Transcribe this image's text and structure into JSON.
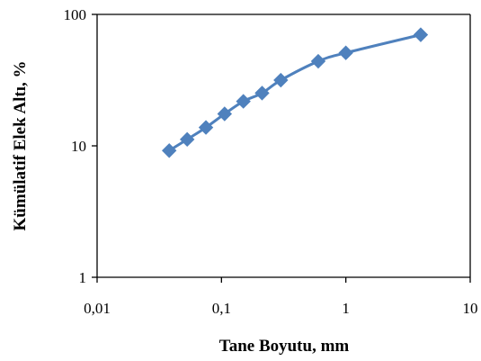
{
  "chart_data": {
    "type": "line",
    "xlabel": "Tane Boyutu, mm",
    "ylabel": "Kümülatif Elek Altı, %",
    "x_scale": "log",
    "y_scale": "log",
    "xlim": [
      0.01,
      10
    ],
    "ylim": [
      1,
      100
    ],
    "x_ticks": [
      0.01,
      0.1,
      1,
      10
    ],
    "x_tick_labels": [
      "0,01",
      "0,1",
      "1",
      "10"
    ],
    "y_ticks": [
      1,
      10,
      100
    ],
    "y_tick_labels": [
      "1",
      "10",
      "100"
    ],
    "grid": false,
    "legend": "none",
    "series": [
      {
        "color": "#4f81bd",
        "marker": "diamond",
        "x": [
          0.038,
          0.053,
          0.075,
          0.106,
          0.15,
          0.212,
          0.3,
          0.6,
          1,
          4
        ],
        "y": [
          9.2,
          11.2,
          13.8,
          17.5,
          21.8,
          25.2,
          31.6,
          44,
          51,
          70
        ]
      }
    ]
  }
}
